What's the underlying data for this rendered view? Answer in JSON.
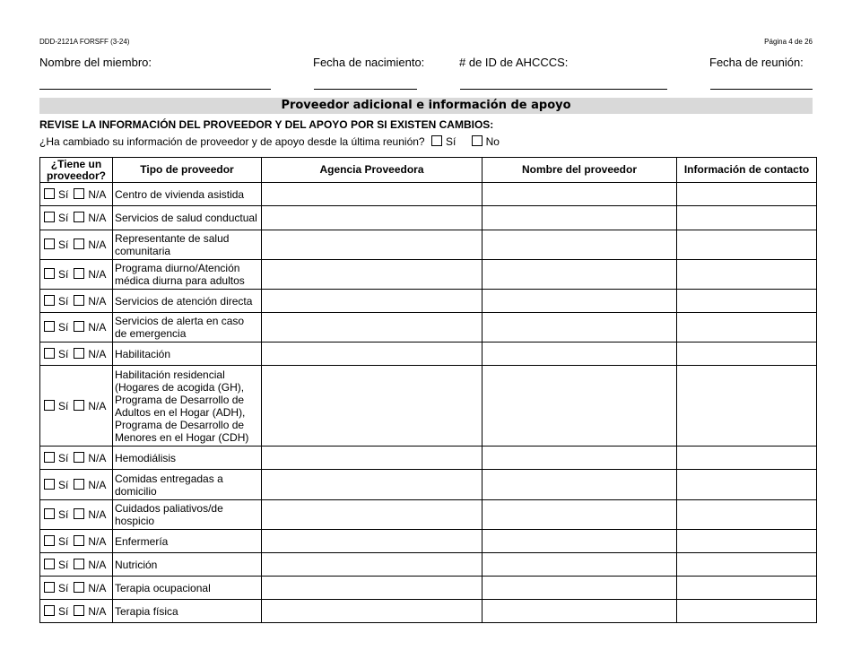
{
  "header": {
    "form_id": "DDD-2121A FORSFF (3-24)",
    "page": "Página 4 de 26"
  },
  "fields": {
    "member_name": "Nombre del miembro:",
    "dob": "Fecha de nacimiento:",
    "ahcccs_id": "# de ID de AHCCCS:",
    "meeting_date": "Fecha de reunión:"
  },
  "section_title": "Proveedor adicional e información de apoyo",
  "instruction": "REVISE LA INFORMACIÓN DEL PROVEEDOR Y DEL APOYO POR SI EXISTEN CAMBIOS:",
  "question": {
    "text": "¿Ha cambiado su información de proveedor y de apoyo desde la última reunión?",
    "yes": "Sí",
    "no": "No"
  },
  "table": {
    "headers": [
      "¿Tiene un\nproveedor?",
      "Tipo de proveedor",
      "Agencia Proveedora",
      "Nombre del proveedor",
      "Información de contacto"
    ],
    "yes_label": "Sí",
    "na_label": "N/A",
    "rows": [
      {
        "type": "Centro de vivienda asistida"
      },
      {
        "type": "Servicios de salud conductual"
      },
      {
        "type": "Representante de salud\ncomunitaria"
      },
      {
        "type": "Programa diurno/Atención\nmédica diurna para adultos"
      },
      {
        "type": "Servicios de atención directa"
      },
      {
        "type": "Servicios de alerta en caso\nde emergencia"
      },
      {
        "type": "Habilitación"
      },
      {
        "type": "Habilitación residencial\n(Hogares de acogida (GH),\nPrograma de Desarrollo de\nAdultos en el Hogar (ADH),\nPrograma de Desarrollo de\nMenores en el Hogar (CDH)"
      },
      {
        "type": "Hemodiálisis"
      },
      {
        "type": "Comidas entregadas a\ndomicilio"
      },
      {
        "type": "Cuidados paliativos/de\nhospicio"
      },
      {
        "type": "Enfermería"
      },
      {
        "type": "Nutrición"
      },
      {
        "type": "Terapia ocupacional"
      },
      {
        "type": "Terapia física"
      }
    ]
  }
}
